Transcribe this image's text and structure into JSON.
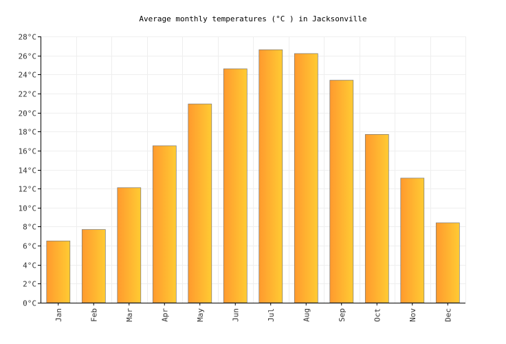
{
  "chart_data": {
    "type": "bar",
    "title": "Average monthly temperatures (°C ) in Jacksonville",
    "categories": [
      "Jan",
      "Feb",
      "Mar",
      "Apr",
      "May",
      "Jun",
      "Jul",
      "Aug",
      "Sep",
      "Oct",
      "Nov",
      "Dec"
    ],
    "series": [
      {
        "values": [
          6.5,
          7.7,
          12.1,
          16.5,
          20.9,
          24.6,
          26.6,
          26.2,
          23.4,
          17.7,
          13.1,
          8.4
        ]
      }
    ],
    "ylim": [
      0,
      28
    ],
    "ytick_step": 2,
    "ytick_suffix": "°C",
    "grid": true,
    "legend": "none"
  },
  "colors": {
    "bar_start": "#ff9a2e",
    "bar_end": "#ffcb33",
    "bar_stroke": "#777777",
    "grid": "#eeeeee",
    "axis": "#000000"
  }
}
